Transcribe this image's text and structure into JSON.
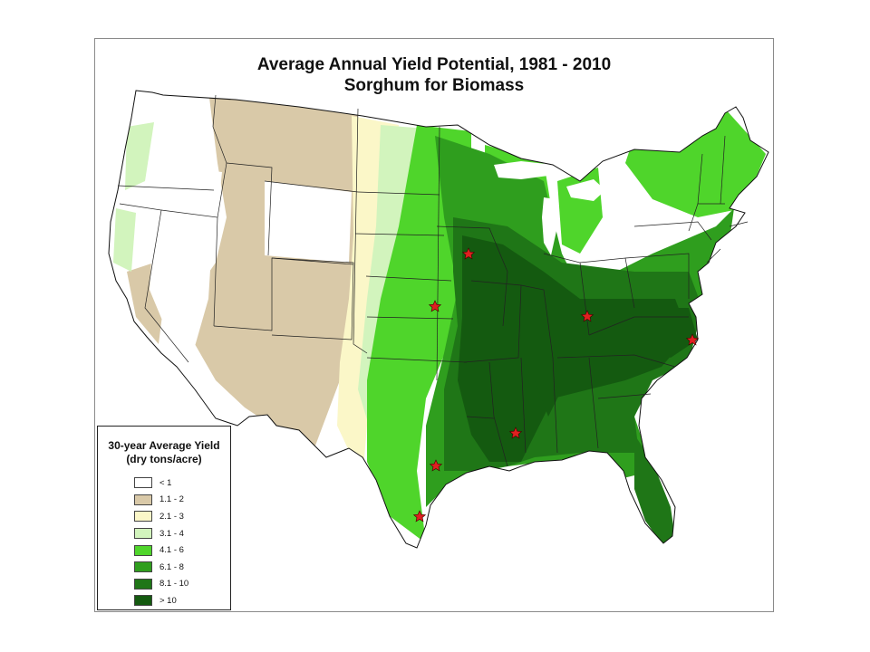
{
  "title": {
    "line1": "Average Annual Yield Potential, 1981 - 2010",
    "line2": "Sorghum for Biomass"
  },
  "legend": {
    "title_line1": "30-year Average Yield",
    "title_line2": "(dry tons/acre)",
    "items": [
      {
        "label": "< 1",
        "color": "#ffffff"
      },
      {
        "label": "1.1 - 2",
        "color": "#d9c9a8"
      },
      {
        "label": "2.1 - 3",
        "color": "#fbf7c8"
      },
      {
        "label": "3.1 - 4",
        "color": "#d2f4bd"
      },
      {
        "label": "4.1 - 6",
        "color": "#4fd52b"
      },
      {
        "label": "6.1 - 8",
        "color": "#2f9e1e"
      },
      {
        "label": "8.1 - 10",
        "color": "#1f7617"
      },
      {
        "label": "> 10",
        "color": "#145a10"
      }
    ]
  },
  "site_marker": {
    "name": "star",
    "color": "#e02020"
  }
}
